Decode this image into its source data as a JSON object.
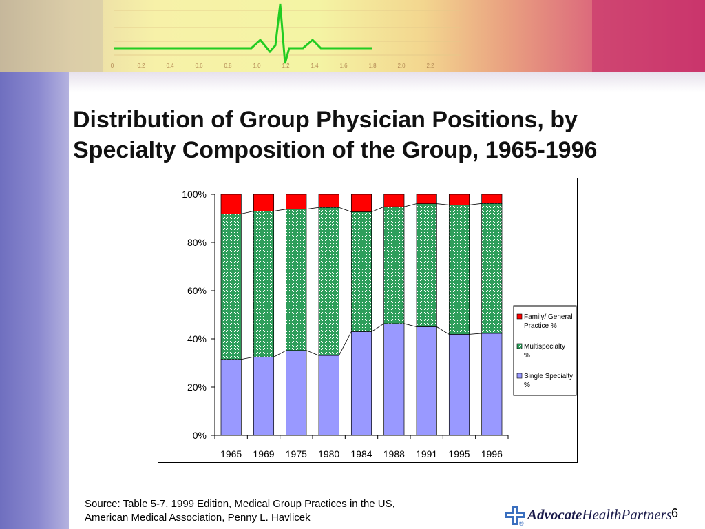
{
  "slide": {
    "title_line1": "Distribution of Group Physician Positions, by",
    "title_line2": "Specialty Composition of the Group, 1965-1996",
    "source_prefix": "Source: Table 5-7, 1999 Edition, ",
    "source_link": "Medical Group Practices in the US",
    "source_suffix": ",",
    "source_line2": "American Medical Association, Penny L. Havlicek",
    "logo_bold": "Advocate",
    "logo_rest": "HealthPartners",
    "logo_mark": "®",
    "page_number": "6"
  },
  "banner": {
    "scale_labels": [
      "0",
      "0.2",
      "0.4",
      "0.6",
      "0.8",
      "1.0",
      "1.2",
      "1.4",
      "1.6",
      "1.8",
      "2.0",
      "2.2"
    ]
  },
  "colors": {
    "single_specialty": "#9999ff",
    "multispecialty": "#2e9e5b",
    "family_general": "#ff0000",
    "left_bar": "#7b7bc8",
    "ecg_line": "#22cc22"
  },
  "chart_data": {
    "type": "bar",
    "stacked": true,
    "percent": true,
    "categories": [
      "1965",
      "1969",
      "1975",
      "1980",
      "1984",
      "1988",
      "1991",
      "1995",
      "1996"
    ],
    "series": [
      {
        "name": "Single Specialty %",
        "color": "#9999ff",
        "pattern": "solid",
        "values": [
          31.5,
          32.5,
          35.2,
          33.1,
          43.0,
          46.3,
          45.0,
          41.9,
          42.3
        ]
      },
      {
        "name": "Multispecialty %",
        "color": "#2e9e5b",
        "pattern": "dotted",
        "values": [
          60.4,
          60.5,
          58.6,
          61.4,
          49.7,
          48.5,
          51.1,
          53.7,
          53.9
        ]
      },
      {
        "name": "Family/ General Practice %",
        "color": "#ff0000",
        "pattern": "solid",
        "values": [
          8.1,
          7.0,
          6.2,
          5.5,
          7.3,
          5.2,
          3.9,
          4.4,
          3.8
        ]
      }
    ],
    "legend_order": [
      2,
      1,
      0
    ],
    "legend_labels": [
      [
        "Family/ General",
        "Practice %"
      ],
      [
        "Multispecialty",
        "%"
      ],
      [
        "Single Specialty",
        "%"
      ]
    ],
    "yticks": [
      "0%",
      "20%",
      "40%",
      "60%",
      "80%",
      "100%"
    ],
    "ylim": [
      0,
      100
    ],
    "legend_position": "right",
    "series_lines": true,
    "grid": false
  }
}
